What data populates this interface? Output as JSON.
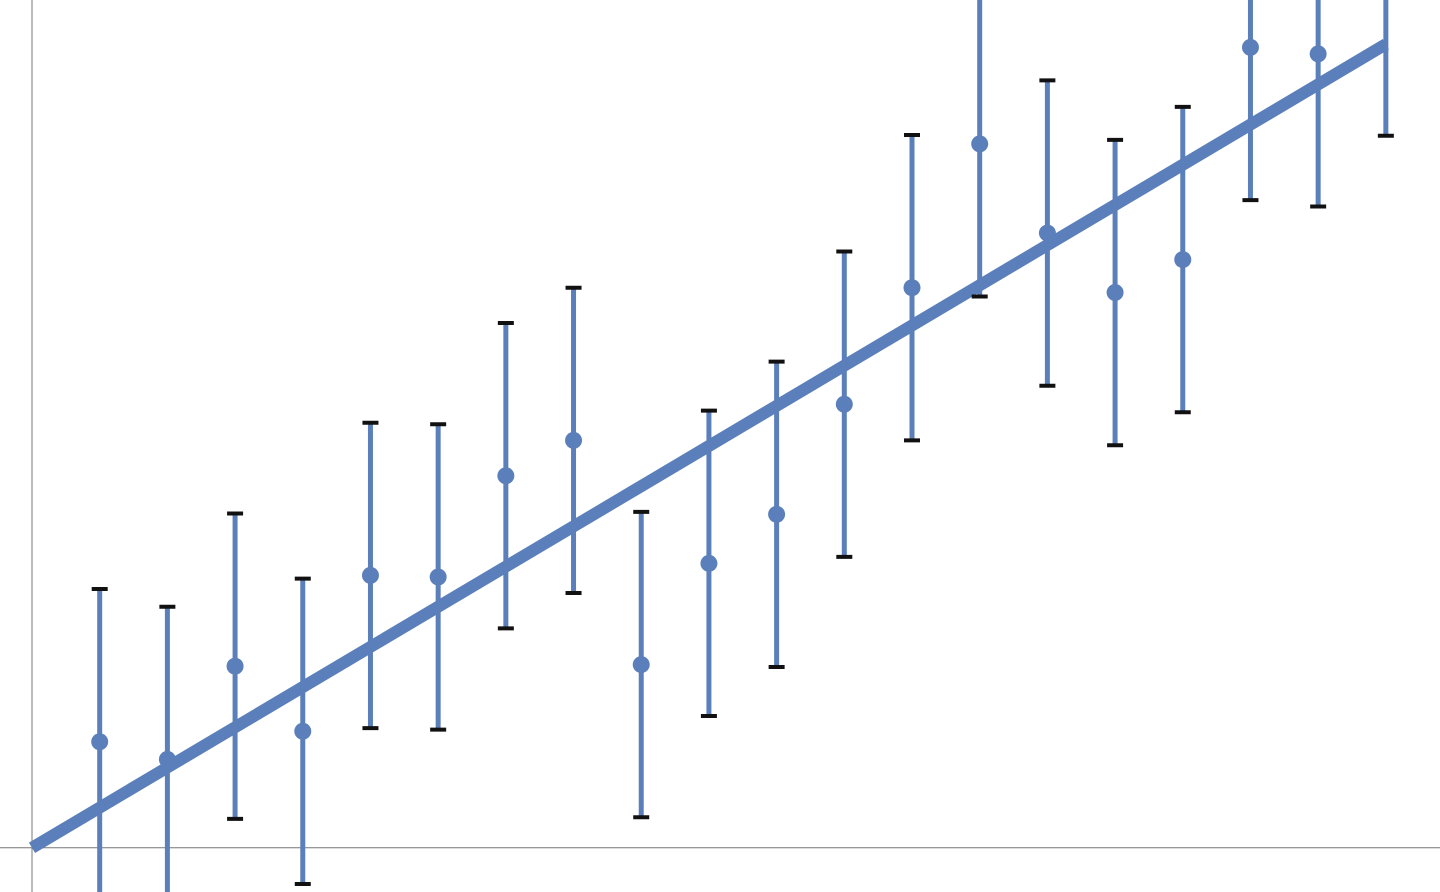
{
  "chart_data": {
    "type": "scatter",
    "title": "",
    "xlabel": "",
    "ylabel": "",
    "tick_labels_shown": false,
    "grid": false,
    "legend": "none",
    "x": [
      1,
      2,
      3,
      4,
      5,
      6,
      7,
      8,
      9,
      10,
      11,
      12,
      13,
      14,
      15,
      16,
      17,
      18,
      19,
      20
    ],
    "y": [
      1.32,
      1.1,
      2.26,
      1.45,
      3.39,
      3.37,
      4.63,
      5.07,
      2.28,
      3.54,
      4.15,
      5.52,
      6.97,
      8.76,
      7.65,
      6.91,
      7.32,
      9.96,
      9.88,
      10.76
    ],
    "error": [
      1.9,
      1.9,
      1.9,
      1.9,
      1.9,
      1.9,
      1.9,
      1.9,
      1.9,
      1.9,
      1.9,
      1.9,
      1.9,
      1.9,
      1.9,
      1.9,
      1.9,
      1.9,
      1.9,
      1.9
    ],
    "fit_line": {
      "x": [
        0,
        20
      ],
      "y": [
        0,
        10.0
      ]
    },
    "xlim": [
      0,
      20.8
    ],
    "ylim": [
      -0.55,
      10.55
    ],
    "colors": {
      "series": "#5b7fba",
      "caps": "#111111",
      "axis": "#777777"
    }
  }
}
